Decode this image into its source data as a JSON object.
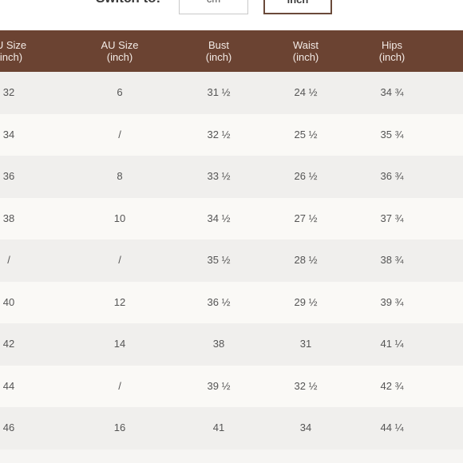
{
  "switch": {
    "label": "Switch to:",
    "options": [
      "cm",
      "inch"
    ],
    "selected": "inch"
  },
  "table": {
    "columns": [
      {
        "line1": "U Size",
        "line2": "inch)"
      },
      {
        "line1": "AU Size",
        "line2": "(inch)"
      },
      {
        "line1": "Bust",
        "line2": "(inch)"
      },
      {
        "line1": "Waist",
        "line2": "(inch)"
      },
      {
        "line1": "Hips",
        "line2": "(inch)"
      }
    ],
    "rows": [
      [
        "32",
        "6",
        "31 ½",
        "24 ½",
        "34 ¾"
      ],
      [
        "34",
        "/",
        "32 ½",
        "25 ½",
        "35 ¾"
      ],
      [
        "36",
        "8",
        "33 ½",
        "26 ½",
        "36 ¾"
      ],
      [
        "38",
        "10",
        "34 ½",
        "27 ½",
        "37 ¾"
      ],
      [
        "/",
        "/",
        "35 ½",
        "28 ½",
        "38 ¾"
      ],
      [
        "40",
        "12",
        "36 ½",
        "29 ½",
        "39 ¾"
      ],
      [
        "42",
        "14",
        "38",
        "31",
        "41 ¼"
      ],
      [
        "44",
        "/",
        "39 ½",
        "32 ½",
        "42 ¾"
      ],
      [
        "46",
        "16",
        "41",
        "34",
        "44 ¼"
      ]
    ]
  }
}
